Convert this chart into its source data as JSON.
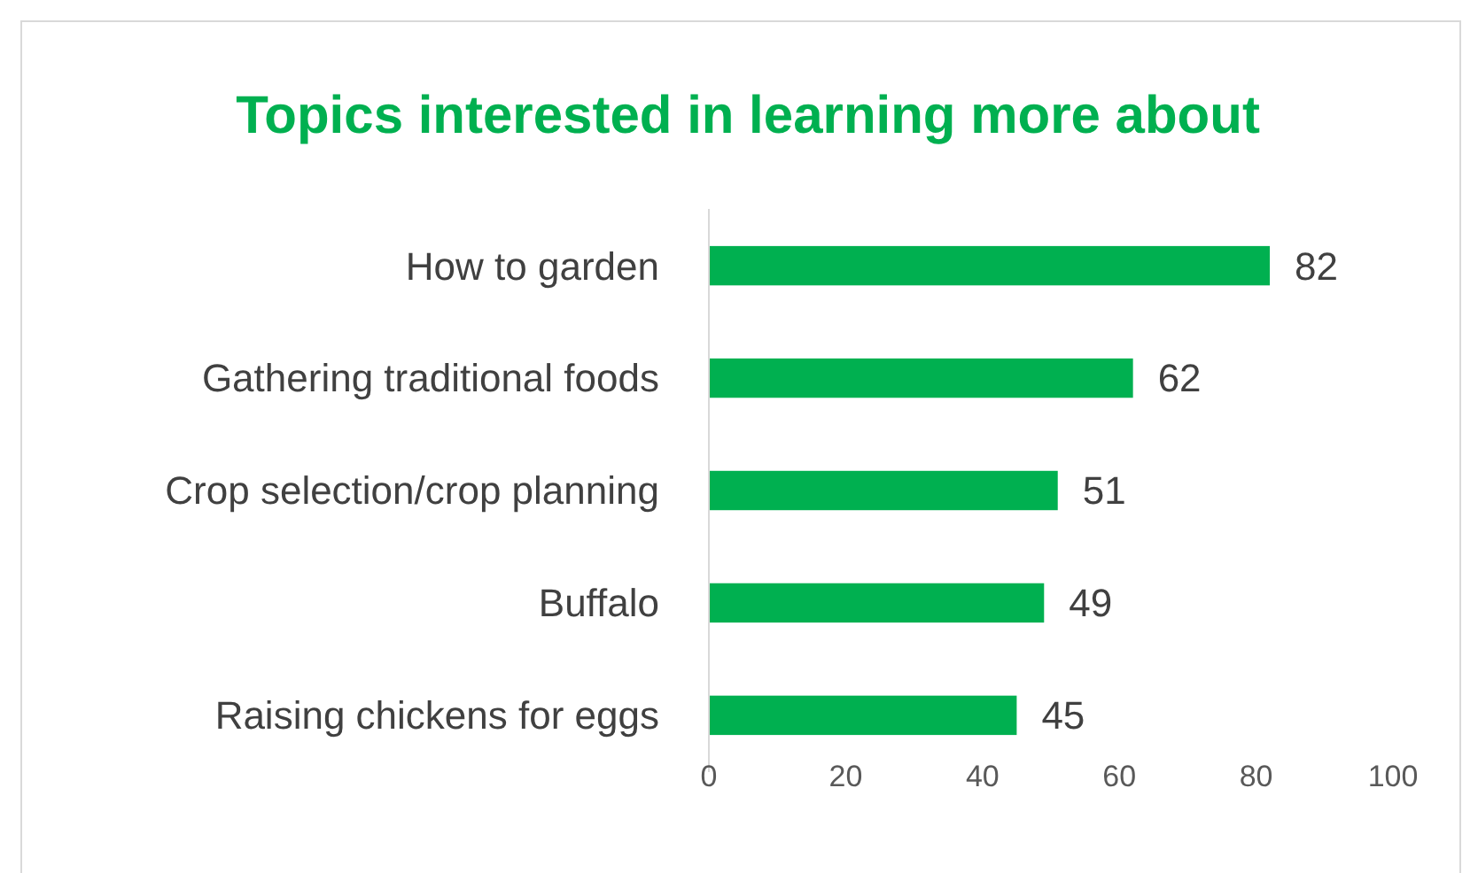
{
  "chart_data": {
    "type": "bar",
    "orientation": "horizontal",
    "title": "Topics interested in learning more about",
    "categories": [
      "How to garden",
      "Gathering traditional foods",
      "Crop selection/crop planning",
      "Buffalo",
      "Raising chickens for eggs"
    ],
    "values": [
      82,
      62,
      51,
      49,
      45
    ],
    "color": "#00b050",
    "xlim": [
      0,
      100
    ],
    "xticks": [
      0,
      20,
      40,
      60,
      80,
      100
    ],
    "data_labels": true,
    "grid": false
  }
}
